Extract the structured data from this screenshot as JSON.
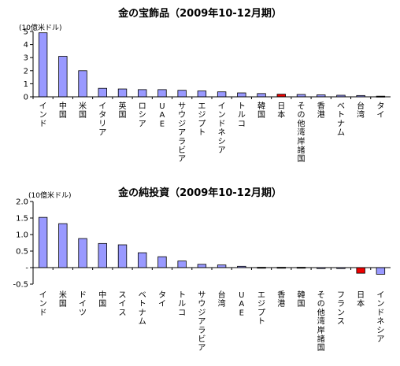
{
  "chart_data": [
    {
      "type": "bar",
      "title": "金の宝飾品（2009年10-12月期）",
      "unit_label": "(10億米ドル)",
      "categories": [
        "インド",
        "中国",
        "米国",
        "イタリア",
        "英国",
        "ロシア",
        "UAE",
        "サウジアラビア",
        "エジプト",
        "インドネシア",
        "トルコ",
        "韓国",
        "日本",
        "その他湾岸諸国",
        "香港",
        "ベトナム",
        "台湾",
        "タイ"
      ],
      "values": [
        4.9,
        3.1,
        2.0,
        0.65,
        0.6,
        0.55,
        0.55,
        0.5,
        0.45,
        0.38,
        0.3,
        0.25,
        0.2,
        0.18,
        0.15,
        0.12,
        0.1,
        0.05
      ],
      "highlight_category": "日本",
      "ylim": [
        0,
        5
      ],
      "yticks": [
        "0",
        "1",
        "2",
        "3",
        "4",
        "5"
      ],
      "colors": {
        "bar": "#9999ff",
        "highlight": "#ee0000"
      }
    },
    {
      "type": "bar",
      "title": "金の純投資（2009年10-12月期）",
      "unit_label": "(10億米ドル)",
      "categories": [
        "インド",
        "米国",
        "ドイツ",
        "中国",
        "スイス",
        "ベトナム",
        "タイ",
        "トルコ",
        "サウジアラビア",
        "台湾",
        "UAE",
        "エジプト",
        "香港",
        "韓国",
        "その他湾岸諸国",
        "フランス",
        "日本",
        "インドネシア"
      ],
      "values": [
        1.52,
        1.33,
        0.88,
        0.73,
        0.69,
        0.45,
        0.33,
        0.2,
        0.1,
        0.08,
        0.04,
        0.01,
        0.01,
        0.01,
        0.0,
        0.0,
        -0.17,
        -0.2
      ],
      "highlight_category": "日本",
      "ylim": [
        -0.5,
        2.0
      ],
      "yticks": [
        "-0.5",
        "-",
        "0.5",
        "1.0",
        "1.5",
        "2.0"
      ],
      "colors": {
        "bar": "#9999ff",
        "highlight": "#ee0000"
      }
    }
  ]
}
